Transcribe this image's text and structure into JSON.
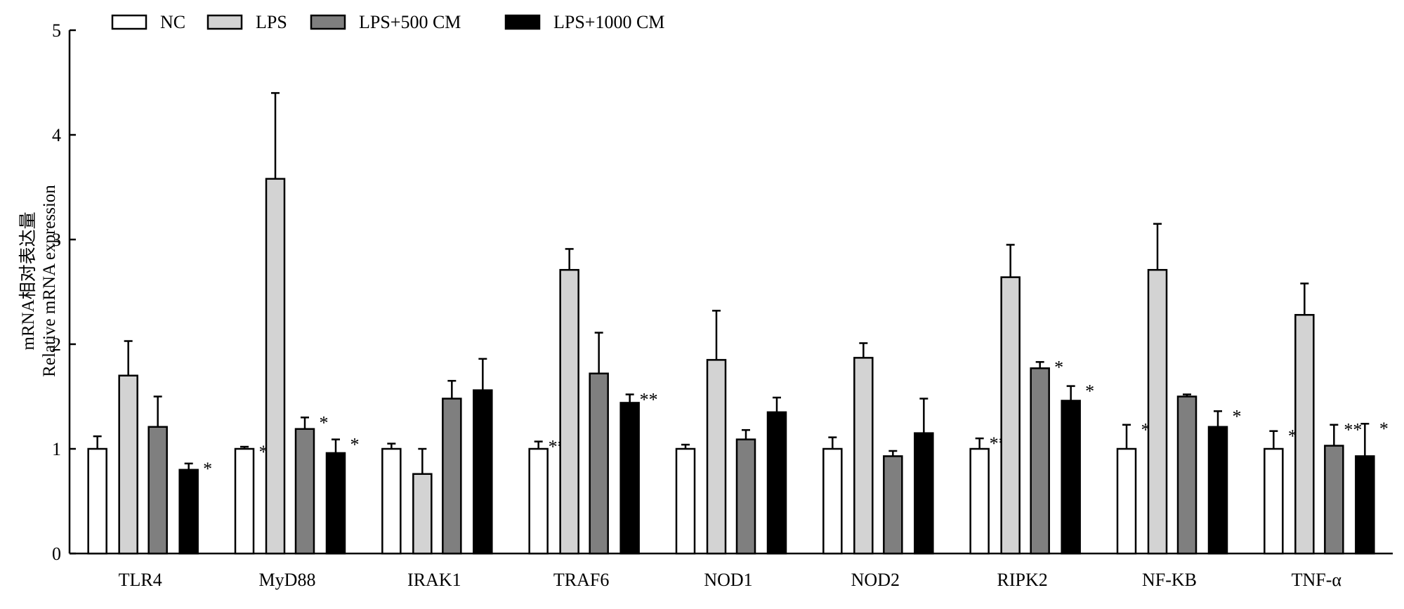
{
  "chart_data": {
    "type": "bar",
    "title": "",
    "xlabel": "",
    "ylabel_cn": "mRNA相对表达量",
    "ylabel_en": "Relative mRNA expression",
    "ylim": [
      0,
      5
    ],
    "yticks": [
      "0",
      "1",
      "2",
      "3",
      "4",
      "5"
    ],
    "legend_position": "top-left",
    "categories": [
      "TLR4",
      "MyD88",
      "IRAK1",
      "TRAF6",
      "NOD1",
      "NOD2",
      "RIPK2",
      "NF-ΚB",
      "TNF-α"
    ],
    "series": [
      {
        "name": "NC",
        "color": "#ffffff",
        "values": [
          1.0,
          1.0,
          1.0,
          1.0,
          1.0,
          1.0,
          1.0,
          1.0,
          1.0
        ],
        "errors": [
          0.12,
          0.02,
          0.05,
          0.07,
          0.04,
          0.11,
          0.1,
          0.23,
          0.17
        ],
        "marks": [
          "",
          "*",
          "",
          "**",
          "",
          "",
          "**",
          "*",
          "*"
        ]
      },
      {
        "name": "LPS",
        "color": "#d3d3d3",
        "values": [
          1.7,
          3.58,
          0.76,
          2.71,
          1.85,
          1.87,
          2.64,
          2.71,
          2.28
        ],
        "errors": [
          0.33,
          0.82,
          0.24,
          0.2,
          0.47,
          0.14,
          0.31,
          0.44,
          0.3
        ],
        "marks": [
          "",
          "",
          "",
          "",
          "",
          "",
          "",
          "",
          ""
        ]
      },
      {
        "name": "LPS+500 CM",
        "color": "#7f7f7f",
        "values": [
          1.21,
          1.19,
          1.48,
          1.72,
          1.09,
          0.93,
          1.77,
          1.5,
          1.03
        ],
        "errors": [
          0.29,
          0.11,
          0.17,
          0.39,
          0.09,
          0.05,
          0.06,
          0.02,
          0.2
        ],
        "marks": [
          "",
          "*",
          "",
          "",
          "",
          "",
          "*",
          "",
          "**"
        ]
      },
      {
        "name": "LPS+1000 CM",
        "color": "#000000",
        "values": [
          0.8,
          0.96,
          1.56,
          1.44,
          1.35,
          1.15,
          1.46,
          1.21,
          0.93
        ],
        "errors": [
          0.06,
          0.13,
          0.3,
          0.08,
          0.14,
          0.33,
          0.14,
          0.15,
          0.31
        ],
        "marks": [
          "*",
          "*",
          "",
          "**",
          "",
          "",
          "*",
          "*",
          "*"
        ]
      }
    ]
  }
}
